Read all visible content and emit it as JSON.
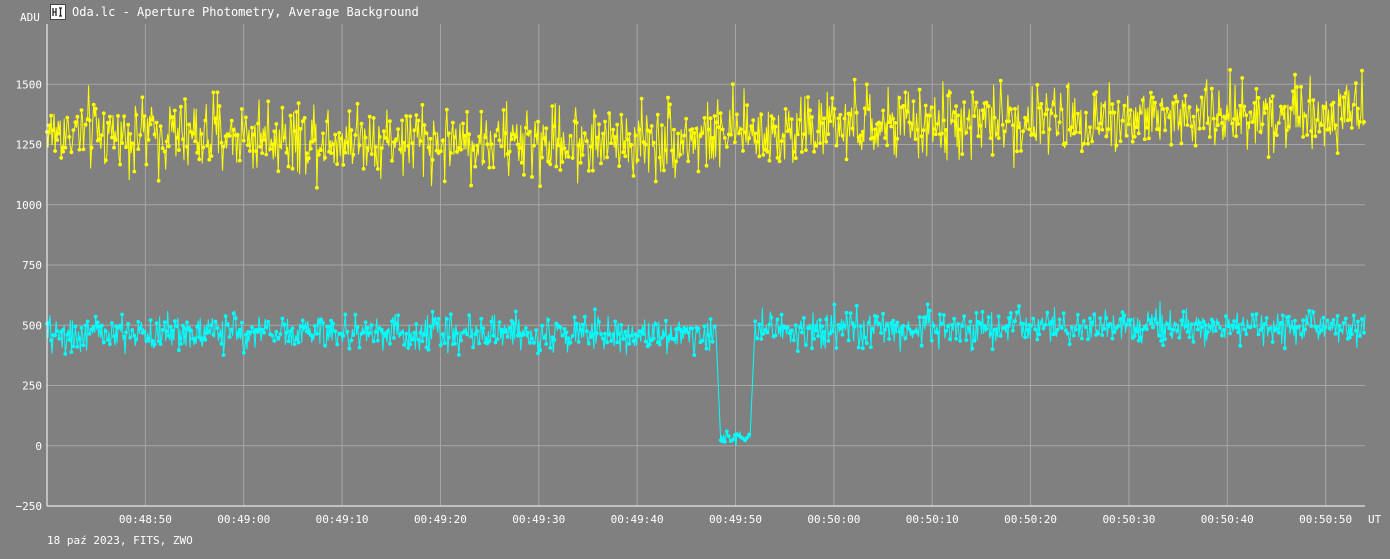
{
  "window": {
    "title": "Oda.lc - Aperture Photometry, Average Background",
    "icon": "light-curve-app-icon"
  },
  "footer": {
    "info": "18 paź 2023, FITS, ZWO"
  },
  "colors": {
    "background": "#808080",
    "grid": "#a6a6a6",
    "axis": "#ffffff",
    "series_yellow": "#ffff00",
    "series_cyan": "#00ffff"
  },
  "chart_data": {
    "type": "line",
    "title": "Oda.lc - Aperture Photometry, Average Background",
    "ylabel": "ADU",
    "xlabel": "UT",
    "ylim": [
      -250,
      1750
    ],
    "yticks": [
      -250,
      0,
      250,
      500,
      750,
      1000,
      1250,
      1500
    ],
    "xlim": [
      "00:48:40",
      "00:50:54"
    ],
    "xticks": [
      "00:48:50",
      "00:49:00",
      "00:49:10",
      "00:49:20",
      "00:49:30",
      "00:49:40",
      "00:49:50",
      "00:50:00",
      "00:50:10",
      "00:50:20",
      "00:50:30",
      "00:50:40",
      "00:50:50"
    ],
    "grid": true,
    "markers": "filled-circle",
    "series": [
      {
        "color": "#ffff00",
        "x_range": [
          "00:48:40",
          "00:50:54"
        ],
        "segments": [
          {
            "x": [
              "00:48:40",
              "00:49:10",
              "00:49:20",
              "00:49:40",
              "00:50:00",
              "00:50:20",
              "00:50:40",
              "00:50:54"
            ],
            "y": [
              1300,
              1280,
              1260,
              1265,
              1320,
              1350,
              1370,
              1390
            ]
          }
        ],
        "noise_amplitude": 100,
        "sample_count": 1300
      },
      {
        "color": "#00ffff",
        "x_range": [
          "00:48:40",
          "00:50:54"
        ],
        "segments": [
          {
            "x": [
              "00:48:40",
              "00:49:00",
              "00:49:20",
              "00:49:48"
            ],
            "y": [
              460,
              470,
              470,
              465
            ]
          },
          {
            "x": [
              "00:49:48.4",
              "00:49:51.5"
            ],
            "y": [
              25,
              40
            ]
          },
          {
            "x": [
              "00:49:52",
              "00:50:10",
              "00:50:30",
              "00:50:54"
            ],
            "y": [
              475,
              485,
              490,
              495
            ]
          }
        ],
        "noise_amplitude": 50,
        "sample_count": 1300
      }
    ]
  }
}
